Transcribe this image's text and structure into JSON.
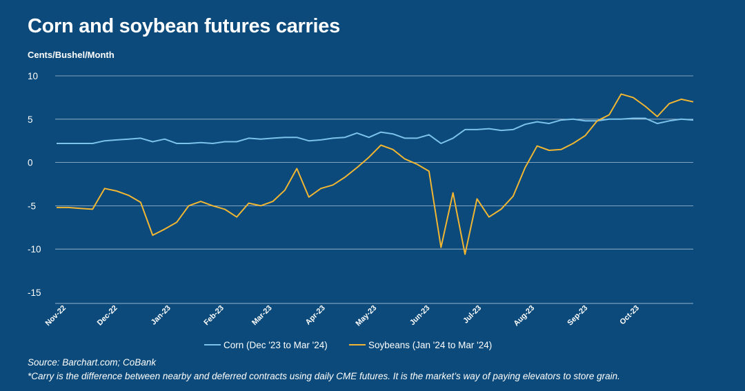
{
  "chart_data": {
    "type": "line",
    "title": "Corn and soybean futures carries",
    "ylabel": "Cents/Bushel/Month",
    "ylim": [
      -15,
      10
    ],
    "yticks": [
      10,
      5,
      0,
      -5,
      -10,
      -15
    ],
    "ytick_labels": [
      "10",
      "5",
      "0",
      "-5",
      "-10",
      "-15"
    ],
    "grid": true,
    "legend": "bottom",
    "x": [
      "2022-11-01",
      "2022-11-08",
      "2022-11-15",
      "2022-11-22",
      "2022-11-29",
      "2022-12-06",
      "2022-12-13",
      "2022-12-20",
      "2022-12-27",
      "2023-01-03",
      "2023-01-10",
      "2023-01-17",
      "2023-01-24",
      "2023-01-31",
      "2023-02-07",
      "2023-02-14",
      "2023-02-21",
      "2023-02-28",
      "2023-03-07",
      "2023-03-14",
      "2023-03-21",
      "2023-03-28",
      "2023-04-04",
      "2023-04-11",
      "2023-04-18",
      "2023-04-25",
      "2023-05-02",
      "2023-05-09",
      "2023-05-16",
      "2023-05-23",
      "2023-05-30",
      "2023-06-06",
      "2023-06-13",
      "2023-06-20",
      "2023-06-27",
      "2023-07-04",
      "2023-07-11",
      "2023-07-18",
      "2023-07-25",
      "2023-08-01",
      "2023-08-08",
      "2023-08-15",
      "2023-08-22",
      "2023-08-29",
      "2023-09-05",
      "2023-09-12",
      "2023-09-19",
      "2023-09-26",
      "2023-10-03",
      "2023-10-10",
      "2023-10-17",
      "2023-10-24",
      "2023-10-31",
      "2023-11-07"
    ],
    "xtick_labels": [
      "Nov-22",
      "Dec-22",
      "Jan-23",
      "Feb-23",
      "Mar-23",
      "Apr-23",
      "May-23",
      "Jun-23",
      "Jul-23",
      "Aug-23",
      "Sep-23",
      "Oct-23"
    ],
    "series": [
      {
        "name": "Corn (Dec '23 to Mar '24)",
        "color": "#7cc3ec",
        "values": [
          2.2,
          2.2,
          2.2,
          2.2,
          2.5,
          2.6,
          2.7,
          2.8,
          2.4,
          2.7,
          2.2,
          2.2,
          2.3,
          2.2,
          2.4,
          2.4,
          2.8,
          2.7,
          2.8,
          2.9,
          2.9,
          2.5,
          2.6,
          2.8,
          2.9,
          3.4,
          2.9,
          3.5,
          3.3,
          2.8,
          2.8,
          3.2,
          2.2,
          2.8,
          3.8,
          3.8,
          3.9,
          3.7,
          3.8,
          4.4,
          4.7,
          4.5,
          4.9,
          5.0,
          4.8,
          4.8,
          5.0,
          5.0,
          5.1,
          5.1,
          4.5,
          4.8,
          5.0,
          4.9
        ]
      },
      {
        "name": "Soybeans (Jan '24 to Mar '24)",
        "color": "#f2b632",
        "values": [
          -5.2,
          -5.2,
          -5.3,
          -5.4,
          -3.0,
          -3.3,
          -3.8,
          -4.6,
          -8.4,
          -7.7,
          -6.9,
          -5.0,
          -4.5,
          -5.0,
          -5.4,
          -6.3,
          -4.7,
          -5.0,
          -4.5,
          -3.2,
          -0.7,
          -4.0,
          -3.0,
          -2.6,
          -1.7,
          -0.6,
          0.6,
          2.0,
          1.5,
          0.4,
          -0.2,
          -1.0,
          -9.8,
          -3.5,
          -10.6,
          -4.2,
          -6.3,
          -5.4,
          -3.9,
          -0.6,
          1.9,
          1.4,
          1.5,
          2.2,
          3.1,
          4.8,
          5.5,
          7.9,
          7.5,
          6.5,
          5.3,
          6.8,
          7.3,
          7.0
        ]
      }
    ]
  },
  "footer": {
    "source": "Source: Barchart.com; CoBank",
    "note": "*Carry is the difference between nearby and deferred contracts using daily CME futures. It is the market’s way of paying elevators to store grain."
  },
  "colors": {
    "background": "#0b4a7a",
    "grid": "#c8d6e4",
    "corn": "#7cc3ec",
    "soybeans": "#f2b632"
  }
}
